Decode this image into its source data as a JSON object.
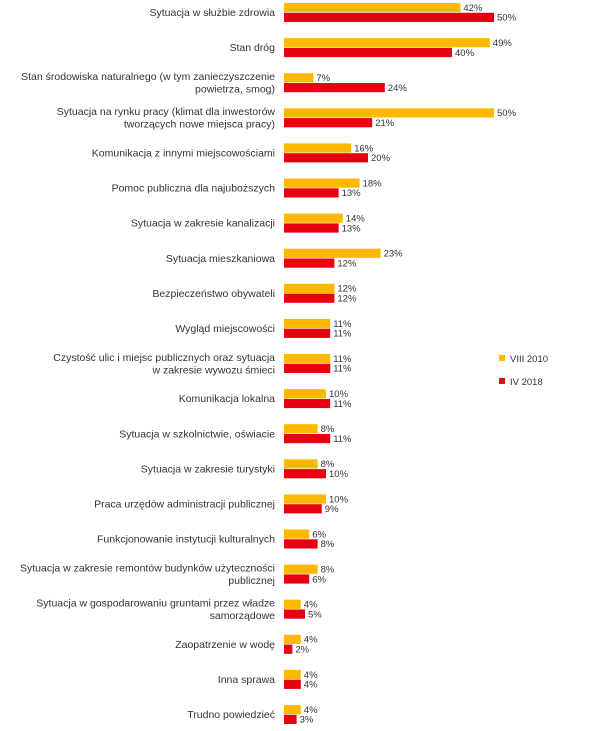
{
  "chart_data": {
    "type": "bar",
    "orientation": "horizontal",
    "title": "",
    "xlabel": "",
    "ylabel": "",
    "xlim": [
      0,
      50
    ],
    "grid": false,
    "legend_position": "right",
    "value_suffix": "%",
    "categories": [
      [
        "Sytuacja w służbie zdrowia"
      ],
      [
        "Stan dróg"
      ],
      [
        "Stan środowiska naturalnego (w tym zanieczyszczenie",
        "powietrza, smog)"
      ],
      [
        "Sytuacja na rynku pracy (klimat dla inwestorów",
        "tworzących nowe miejsca pracy)"
      ],
      [
        "Komunikacja z innymi miejscowościami"
      ],
      [
        "Pomoc publiczna dla najuboższych"
      ],
      [
        "Sytuacja w zakresie kanalizacji"
      ],
      [
        "Sytuacja mieszkaniowa"
      ],
      [
        "Bezpieczeństwo obywateli"
      ],
      [
        "Wygląd miejscowości"
      ],
      [
        "Czystość ulic i miejsc publicznych oraz sytuacja",
        "w zakresie wywozu śmieci"
      ],
      [
        "Komunikacja lokalna"
      ],
      [
        "Sytuacja w szkolnictwie, oświacie"
      ],
      [
        "Sytuacja w zakresie turystyki"
      ],
      [
        "Praca urzędów administracji publicznej"
      ],
      [
        "Funkcjonowanie instytucji kulturalnych"
      ],
      [
        "Sytuacja w zakresie remontów budynków użyteczności",
        "publicznej"
      ],
      [
        "Sytuacja w gospodarowaniu gruntami przez władze",
        "samorządowe"
      ],
      [
        "Zaopatrzenie w wodę"
      ],
      [
        "Inna sprawa"
      ],
      [
        "Trudno powiedzieć"
      ]
    ],
    "series": [
      {
        "name": "VIII 2010",
        "color": "#FFB800",
        "values": [
          42,
          49,
          7,
          50,
          16,
          18,
          14,
          23,
          12,
          11,
          11,
          10,
          8,
          8,
          10,
          6,
          8,
          4,
          4,
          4,
          4
        ]
      },
      {
        "name": "IV 2018",
        "color": "#E60012",
        "values": [
          50,
          40,
          24,
          21,
          20,
          13,
          13,
          12,
          12,
          11,
          11,
          11,
          11,
          10,
          9,
          8,
          6,
          5,
          2,
          4,
          3
        ]
      }
    ]
  }
}
